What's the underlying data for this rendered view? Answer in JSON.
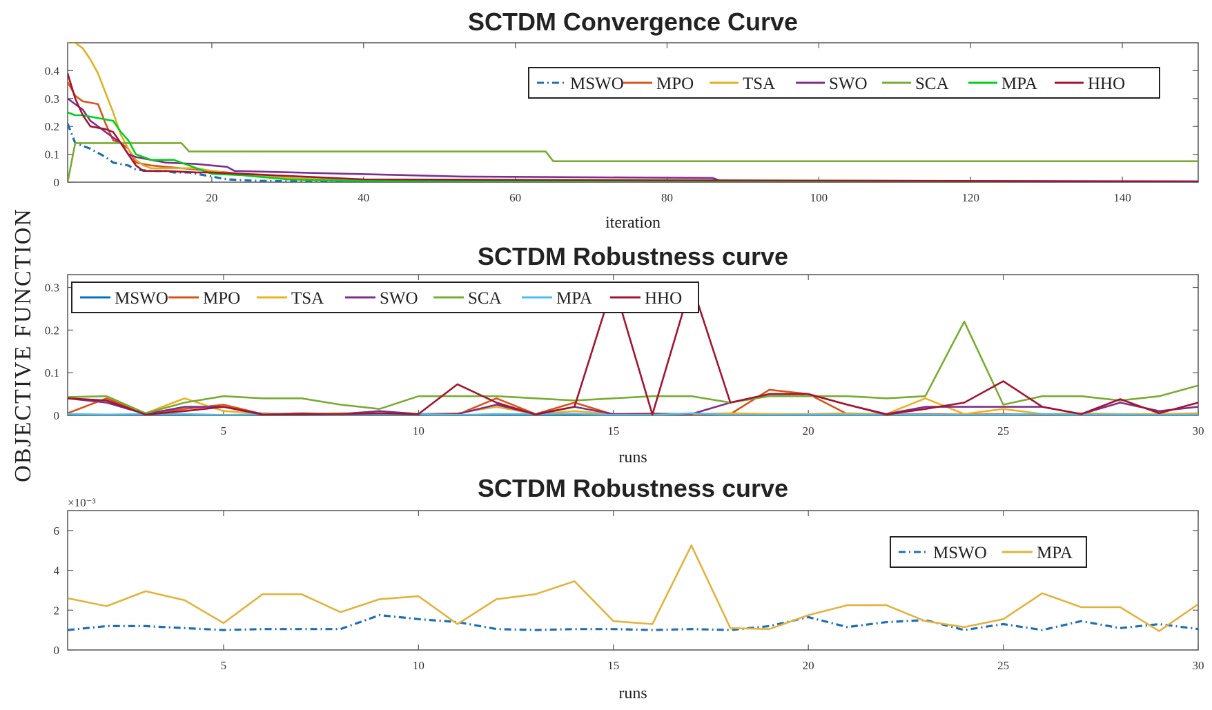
{
  "figure": {
    "ylabel": "OBJECTIVE FUNCTION"
  },
  "chart_data": [
    {
      "type": "line",
      "title": "SCTDM Convergence Curve",
      "xlabel": "iteration",
      "ylabel": "",
      "xlim": [
        1,
        150
      ],
      "ylim": [
        0,
        0.5
      ],
      "xticks": [
        "20",
        "40",
        "60",
        "80",
        "100",
        "120",
        "140"
      ],
      "yticks": [
        "0",
        "0.1",
        "0.2",
        "0.3",
        "0.4"
      ],
      "legend": "top-right",
      "series": [
        {
          "name": "MSWO",
          "color": "#1f6fb5",
          "dash": "dashdot",
          "x": [
            1,
            2,
            4,
            6,
            7,
            9,
            10,
            12,
            14,
            15,
            17,
            20,
            22,
            26,
            30,
            40,
            150
          ],
          "y": [
            0.21,
            0.14,
            0.12,
            0.09,
            0.07,
            0.06,
            0.045,
            0.04,
            0.04,
            0.035,
            0.035,
            0.02,
            0.01,
            0.005,
            0.003,
            0.002,
            0.001
          ]
        },
        {
          "name": "MPO",
          "color": "#d9541e",
          "x": [
            1,
            2,
            3,
            5,
            6,
            7,
            8,
            9,
            10,
            12,
            16,
            20,
            22,
            30,
            40,
            150
          ],
          "y": [
            0.36,
            0.31,
            0.29,
            0.28,
            0.21,
            0.15,
            0.14,
            0.12,
            0.07,
            0.06,
            0.05,
            0.04,
            0.035,
            0.01,
            0.005,
            0.002
          ]
        },
        {
          "name": "TSA",
          "color": "#e0b020",
          "x": [
            1,
            2,
            3,
            4,
            5,
            6,
            7,
            8,
            9,
            10,
            11,
            12,
            14,
            18,
            20,
            23,
            30,
            40,
            150
          ],
          "y": [
            0.5,
            0.5,
            0.48,
            0.44,
            0.39,
            0.32,
            0.25,
            0.17,
            0.12,
            0.08,
            0.06,
            0.05,
            0.05,
            0.05,
            0.04,
            0.03,
            0.015,
            0.005,
            0.002
          ]
        },
        {
          "name": "SWO",
          "color": "#7e2f8e",
          "x": [
            1,
            2,
            3,
            4,
            6,
            8,
            9,
            10,
            12,
            14,
            18,
            20,
            22,
            23,
            38,
            53,
            86,
            87,
            150
          ],
          "y": [
            0.3,
            0.28,
            0.26,
            0.22,
            0.18,
            0.14,
            0.1,
            0.09,
            0.08,
            0.07,
            0.065,
            0.06,
            0.055,
            0.04,
            0.03,
            0.02,
            0.015,
            0.005,
            0.003
          ]
        },
        {
          "name": "SCA",
          "color": "#77ac30",
          "x": [
            1,
            2,
            3,
            16,
            17,
            64,
            65,
            150
          ],
          "y": [
            0.0,
            0.14,
            0.14,
            0.14,
            0.11,
            0.11,
            0.075,
            0.075
          ]
        },
        {
          "name": "MPA",
          "color": "#00d01a",
          "x": [
            1,
            2,
            3,
            5,
            7,
            8,
            9,
            10,
            11,
            12,
            15,
            18,
            20,
            24,
            30,
            40,
            150
          ],
          "y": [
            0.25,
            0.24,
            0.24,
            0.23,
            0.22,
            0.18,
            0.15,
            0.1,
            0.09,
            0.08,
            0.08,
            0.05,
            0.03,
            0.025,
            0.01,
            0.004,
            0.001
          ]
        },
        {
          "name": "HHO",
          "color": "#a2142f",
          "x": [
            1,
            2,
            3,
            4,
            6,
            7,
            8,
            9,
            10,
            11,
            12,
            14,
            18,
            20,
            24,
            40,
            150
          ],
          "y": [
            0.39,
            0.3,
            0.24,
            0.2,
            0.19,
            0.18,
            0.14,
            0.1,
            0.06,
            0.04,
            0.04,
            0.04,
            0.035,
            0.035,
            0.03,
            0.01,
            0.002
          ]
        }
      ]
    },
    {
      "type": "line",
      "title": "SCTDM Robustness curve",
      "xlabel": "runs",
      "ylabel": "",
      "xlim": [
        1,
        30
      ],
      "ylim": [
        0,
        0.33
      ],
      "xticks": [
        "5",
        "10",
        "15",
        "20",
        "25",
        "30"
      ],
      "yticks": [
        "0",
        "0.1",
        "0.2",
        "0.3"
      ],
      "legend": "top-left",
      "series": [
        {
          "name": "MSWO",
          "color": "#0072bd",
          "x": [
            1,
            2,
            3,
            4,
            5,
            6,
            7,
            8,
            9,
            10,
            11,
            12,
            13,
            14,
            15,
            16,
            17,
            18,
            19,
            20,
            21,
            22,
            23,
            24,
            25,
            26,
            27,
            28,
            29,
            30
          ],
          "y": [
            0.001,
            0.001,
            0.001,
            0.001,
            0.001,
            0.001,
            0.001,
            0.001,
            0.002,
            0.001,
            0.001,
            0.001,
            0.001,
            0.001,
            0.001,
            0.001,
            0.001,
            0.001,
            0.001,
            0.002,
            0.001,
            0.001,
            0.001,
            0.001,
            0.001,
            0.001,
            0.001,
            0.001,
            0.001,
            0.001
          ]
        },
        {
          "name": "MPO",
          "color": "#d95319",
          "x": [
            1,
            2,
            3,
            4,
            5,
            6,
            7,
            8,
            9,
            10,
            11,
            12,
            13,
            14,
            15,
            16,
            17,
            18,
            19,
            20,
            21,
            22,
            23,
            24,
            25,
            26,
            27,
            28,
            29,
            30
          ],
          "y": [
            0.005,
            0.04,
            0.003,
            0.015,
            0.025,
            0.003,
            0.005,
            0.003,
            0.004,
            0.003,
            0.002,
            0.04,
            0.003,
            0.03,
            0.002,
            0.003,
            0.002,
            0.003,
            0.06,
            0.05,
            0.003,
            0.002,
            0.003,
            0.002,
            0.003,
            0.002,
            0.003,
            0.002,
            0.003,
            0.002
          ]
        },
        {
          "name": "TSA",
          "color": "#edb120",
          "x": [
            1,
            2,
            3,
            4,
            5,
            6,
            7,
            8,
            9,
            10,
            11,
            12,
            13,
            14,
            15,
            16,
            17,
            18,
            19,
            20,
            21,
            22,
            23,
            24,
            25,
            26,
            27,
            28,
            29,
            30
          ],
          "y": [
            0.04,
            0.03,
            0.005,
            0.04,
            0.01,
            0.005,
            0.003,
            0.005,
            0.003,
            0.003,
            0.005,
            0.02,
            0.003,
            0.01,
            0.003,
            0.005,
            0.003,
            0.005,
            0.003,
            0.003,
            0.005,
            0.003,
            0.04,
            0.003,
            0.015,
            0.003,
            0.005,
            0.003,
            0.003,
            0.005
          ]
        },
        {
          "name": "SWO",
          "color": "#7e2f8e",
          "x": [
            1,
            2,
            3,
            4,
            5,
            6,
            7,
            8,
            9,
            10,
            11,
            12,
            13,
            14,
            15,
            16,
            17,
            18,
            19,
            20,
            21,
            22,
            23,
            24,
            25,
            26,
            27,
            28,
            29,
            30
          ],
          "y": [
            0.04,
            0.03,
            0.003,
            0.02,
            0.02,
            0.003,
            0.003,
            0.003,
            0.01,
            0.003,
            0.003,
            0.025,
            0.003,
            0.02,
            0.003,
            0.003,
            0.003,
            0.03,
            0.05,
            0.05,
            0.025,
            0.003,
            0.02,
            0.02,
            0.02,
            0.02,
            0.003,
            0.03,
            0.01,
            0.02
          ]
        },
        {
          "name": "SCA",
          "color": "#77ac30",
          "x": [
            1,
            2,
            3,
            4,
            5,
            6,
            7,
            8,
            9,
            10,
            11,
            12,
            13,
            14,
            15,
            16,
            17,
            18,
            19,
            20,
            21,
            22,
            23,
            24,
            25,
            26,
            27,
            28,
            29,
            30
          ],
          "y": [
            0.043,
            0.045,
            0.005,
            0.03,
            0.045,
            0.04,
            0.04,
            0.025,
            0.015,
            0.045,
            0.045,
            0.045,
            0.04,
            0.035,
            0.04,
            0.045,
            0.045,
            0.03,
            0.045,
            0.045,
            0.045,
            0.04,
            0.045,
            0.22,
            0.025,
            0.045,
            0.045,
            0.035,
            0.045,
            0.07
          ]
        },
        {
          "name": "MPA",
          "color": "#4dbeee",
          "x": [
            1,
            2,
            3,
            4,
            5,
            6,
            7,
            8,
            9,
            10,
            11,
            12,
            13,
            14,
            15,
            16,
            17,
            18,
            19,
            20,
            21,
            22,
            23,
            24,
            25,
            26,
            27,
            28,
            29,
            30
          ],
          "y": [
            0.003,
            0.002,
            0.003,
            0.003,
            0.001,
            0.003,
            0.003,
            0.002,
            0.003,
            0.003,
            0.001,
            0.003,
            0.003,
            0.004,
            0.001,
            0.001,
            0.005,
            0.001,
            0.001,
            0.002,
            0.002,
            0.002,
            0.002,
            0.001,
            0.002,
            0.003,
            0.002,
            0.002,
            0.001,
            0.002
          ]
        },
        {
          "name": "HHO",
          "color": "#a2142f",
          "x": [
            1,
            2,
            3,
            4,
            5,
            6,
            7,
            8,
            9,
            10,
            11,
            12,
            13,
            14,
            15,
            16,
            17,
            18,
            19,
            20,
            21,
            22,
            23,
            24,
            25,
            26,
            27,
            28,
            29,
            30
          ],
          "y": [
            0.04,
            0.035,
            0.002,
            0.01,
            0.02,
            0.002,
            0.003,
            0.003,
            0.005,
            0.003,
            0.073,
            0.03,
            0.002,
            0.02,
            0.31,
            0.002,
            0.31,
            0.03,
            0.05,
            0.05,
            0.025,
            0.002,
            0.015,
            0.03,
            0.08,
            0.02,
            0.003,
            0.038,
            0.005,
            0.03
          ]
        }
      ]
    },
    {
      "type": "line",
      "title": "SCTDM Robustness curve",
      "xlabel": "runs",
      "ylabel": "",
      "yscale_label": "×10⁻³",
      "xlim": [
        1,
        30
      ],
      "ylim": [
        0,
        7
      ],
      "xticks": [
        "5",
        "10",
        "15",
        "20",
        "25",
        "30"
      ],
      "yticks": [
        "0",
        "2",
        "4",
        "6"
      ],
      "legend": "top-right",
      "series": [
        {
          "name": "MSWO",
          "color": "#1f6fb5",
          "dash": "dashdot",
          "x": [
            1,
            2,
            3,
            4,
            5,
            6,
            7,
            8,
            9,
            10,
            11,
            12,
            13,
            14,
            15,
            16,
            17,
            18,
            19,
            20,
            21,
            22,
            23,
            24,
            25,
            26,
            27,
            28,
            29,
            30
          ],
          "y": [
            1.0,
            1.2,
            1.2,
            1.1,
            1.0,
            1.05,
            1.05,
            1.05,
            1.75,
            1.55,
            1.4,
            1.05,
            1.0,
            1.05,
            1.05,
            1.0,
            1.05,
            1.0,
            1.2,
            1.65,
            1.15,
            1.4,
            1.5,
            1.0,
            1.3,
            1.0,
            1.45,
            1.1,
            1.3,
            1.05
          ]
        },
        {
          "name": "MPA",
          "color": "#e3b23c",
          "x": [
            1,
            2,
            3,
            4,
            5,
            6,
            7,
            8,
            9,
            10,
            11,
            12,
            13,
            14,
            15,
            16,
            17,
            18,
            19,
            20,
            21,
            22,
            23,
            24,
            25,
            26,
            27,
            28,
            29,
            30
          ],
          "y": [
            2.6,
            2.2,
            2.95,
            2.5,
            1.35,
            2.8,
            2.8,
            1.9,
            2.55,
            2.7,
            1.3,
            2.55,
            2.8,
            3.45,
            1.45,
            1.3,
            5.25,
            1.1,
            1.05,
            1.75,
            2.25,
            2.25,
            1.45,
            1.15,
            1.55,
            2.85,
            2.15,
            2.15,
            0.95,
            2.3
          ]
        }
      ]
    }
  ]
}
